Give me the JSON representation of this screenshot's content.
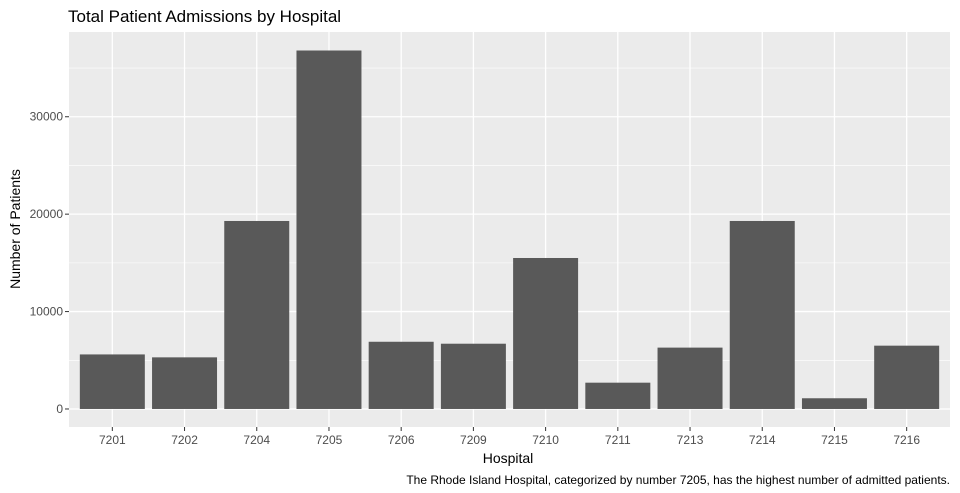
{
  "chart_data": {
    "type": "bar",
    "title": "Total Patient Admissions by Hospital",
    "xlabel": "Hospital",
    "ylabel": "Number of Patients",
    "caption": "The Rhode Island Hospital, categorized by number 7205, has the highest number of admitted patients.",
    "categories": [
      "7201",
      "7202",
      "7204",
      "7205",
      "7206",
      "7209",
      "7210",
      "7211",
      "7213",
      "7214",
      "7215",
      "7216"
    ],
    "values": [
      5600,
      5300,
      19300,
      36800,
      6900,
      6700,
      15500,
      2700,
      6300,
      19300,
      1100,
      6500
    ],
    "ylim": [
      -1850,
      38700
    ],
    "yticks": [
      0,
      10000,
      20000,
      30000
    ],
    "grid": true,
    "bar_color": "#595959",
    "panel_color": "#ebebeb",
    "grid_color": "#ffffff"
  }
}
